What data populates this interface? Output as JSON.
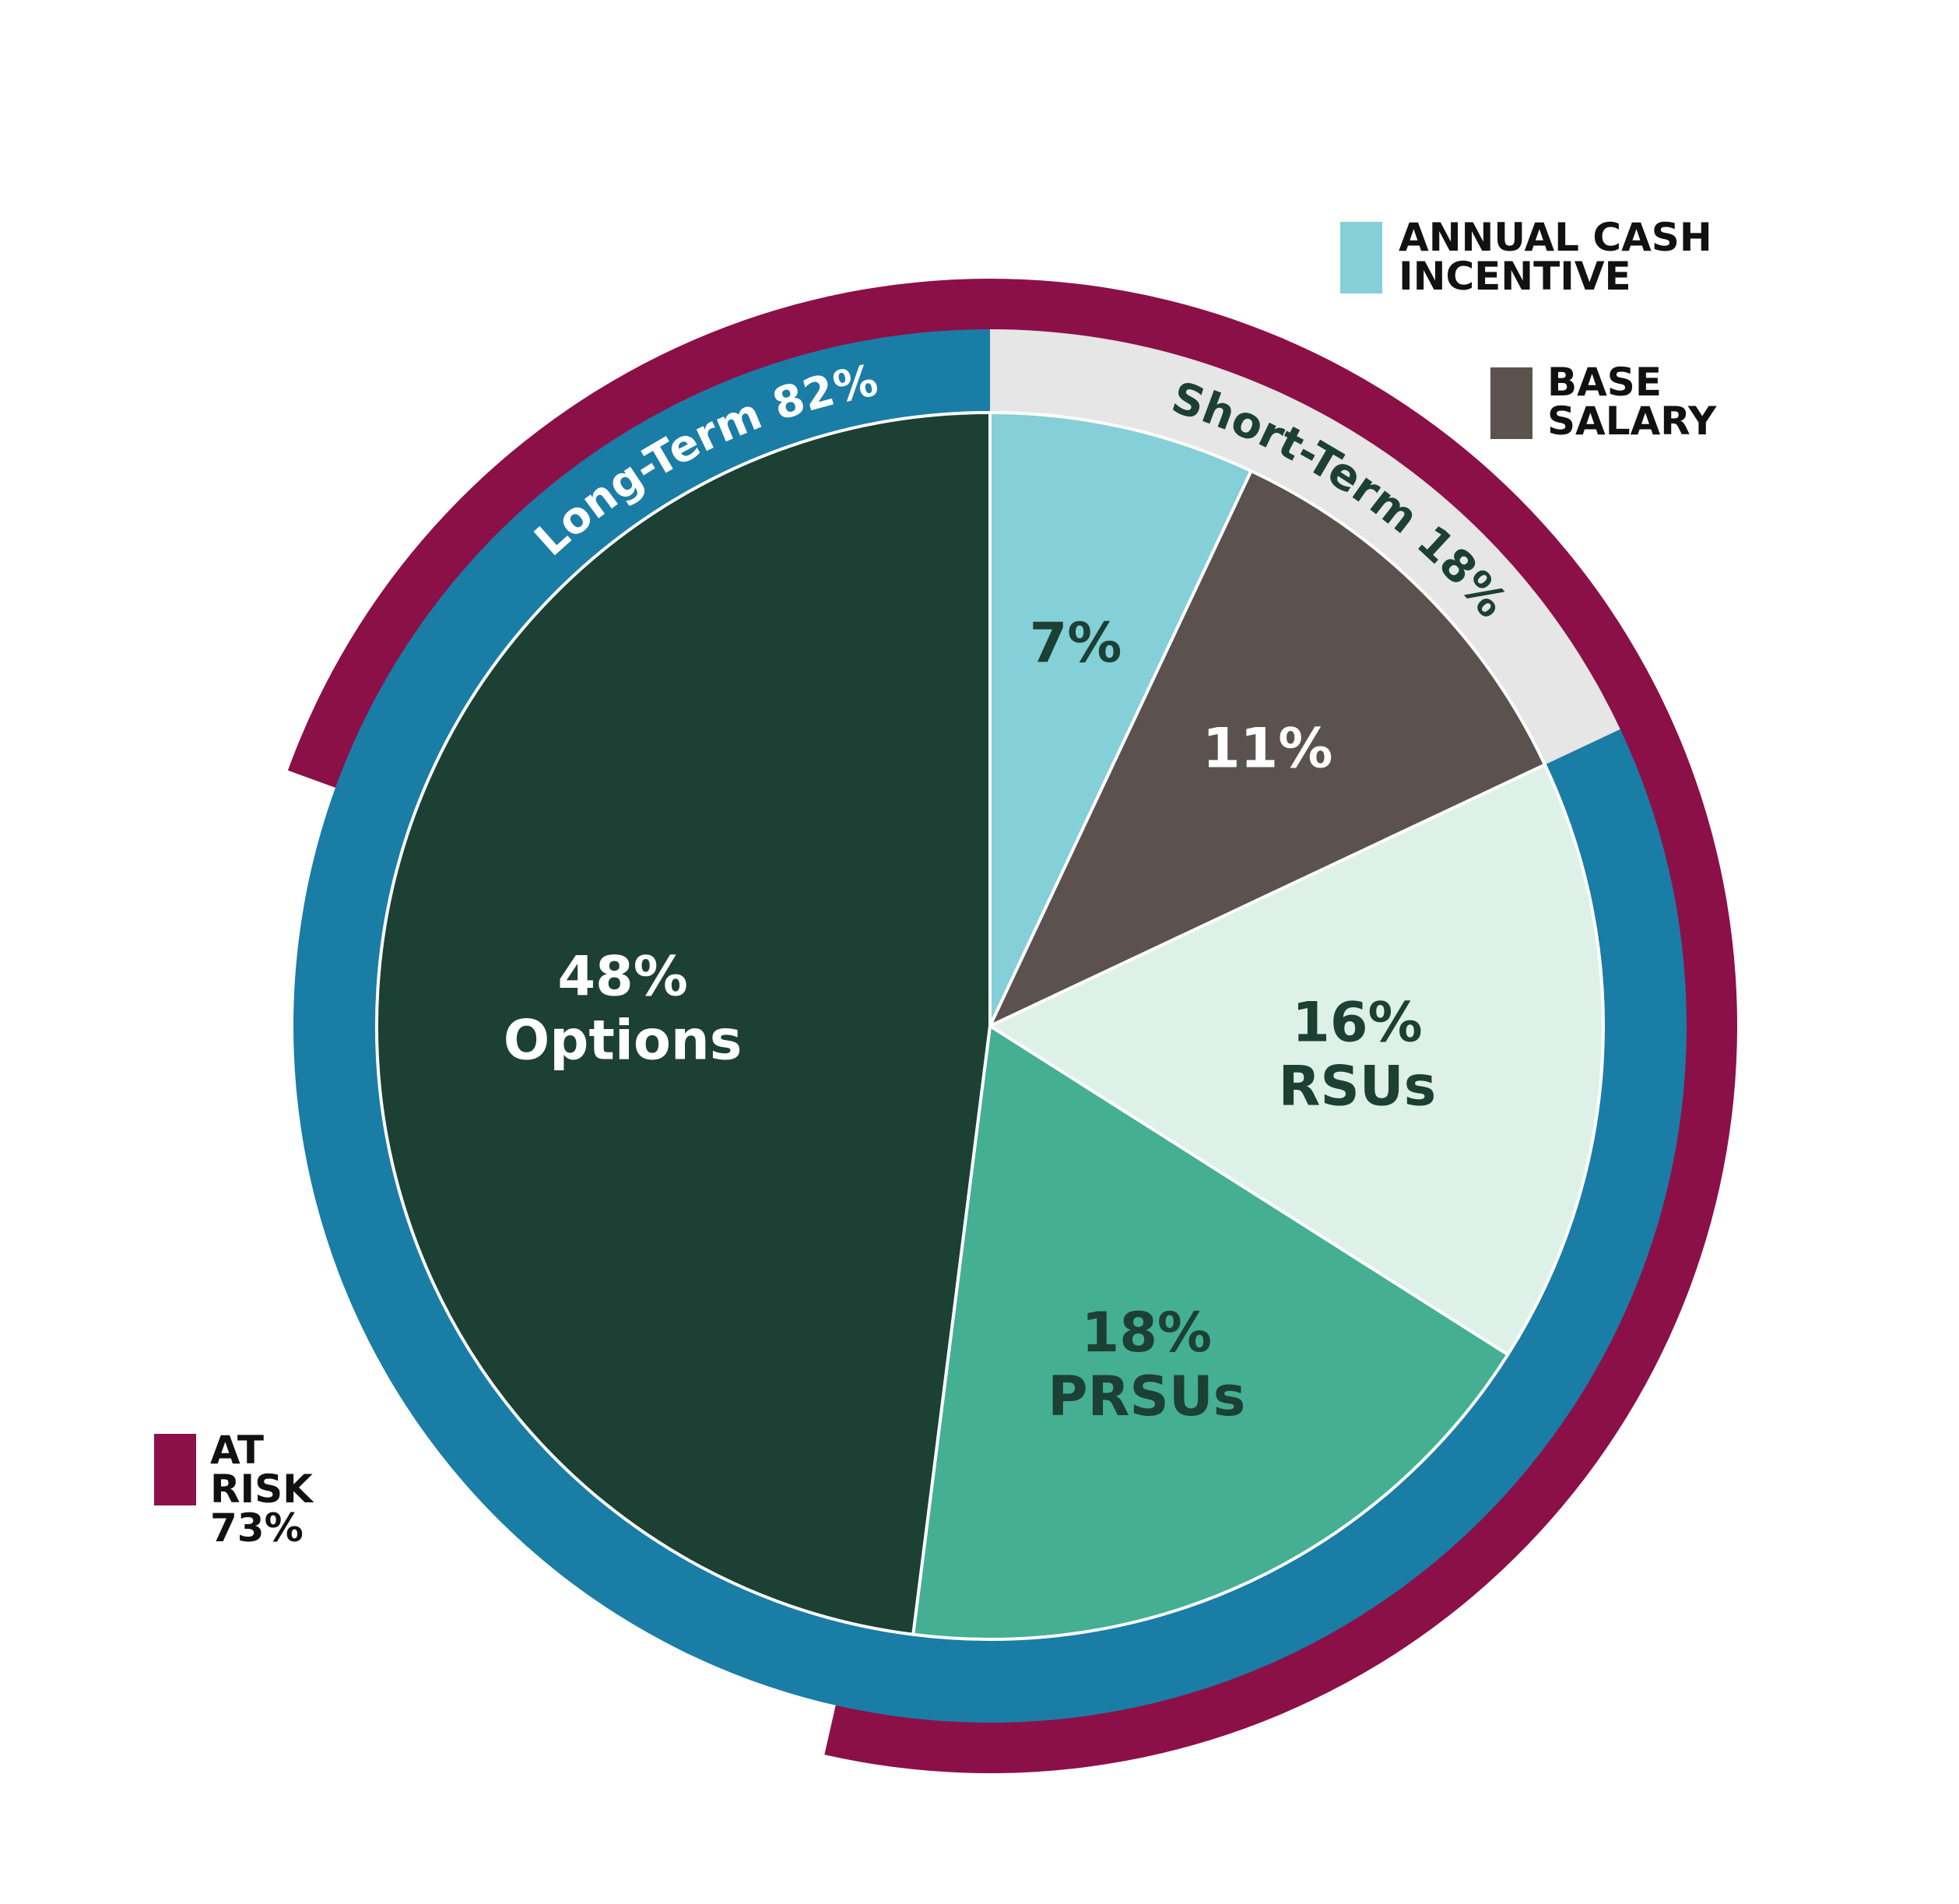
{
  "chart_data": {
    "type": "pie",
    "slices": [
      {
        "label": "7%",
        "sublabel": "",
        "value": 7,
        "color": "#84CFD8",
        "text_color": "#1C4034"
      },
      {
        "label": "11%",
        "sublabel": "",
        "value": 11,
        "color": "#5B5250",
        "text_color": "#FFFFFF"
      },
      {
        "label": "16%",
        "sublabel": "RSUs",
        "value": 16,
        "color": "#DDF1E8",
        "text_color": "#1C4034"
      },
      {
        "label": "18%",
        "sublabel": "PRSUs",
        "value": 18,
        "color": "#44AF93",
        "text_color": "#1C4034"
      },
      {
        "label": "48%",
        "sublabel": "Options",
        "value": 48,
        "color": "#1C4034",
        "text_color": "#FFFFFF"
      }
    ],
    "term_ring": [
      {
        "label": "Short-Term 18%",
        "value": 18,
        "color": "#E6E6E6",
        "text_color": "#1C4034"
      },
      {
        "label": "Long-Term 82%",
        "value": 82,
        "color": "#1A7DA6",
        "text_color": "#FFFFFF"
      }
    ],
    "at_risk_ring": {
      "value": 73,
      "color": "#8C1048"
    },
    "legend": [
      {
        "label_lines": [
          "ANNUAL CASH",
          "INCENTIVE"
        ],
        "color": "#84CFD8"
      },
      {
        "label_lines": [
          "BASE",
          "SALARY"
        ],
        "color": "#5B5250"
      },
      {
        "label_lines": [
          "AT",
          "RISK",
          "73%"
        ],
        "color": "#8C1048"
      }
    ]
  }
}
